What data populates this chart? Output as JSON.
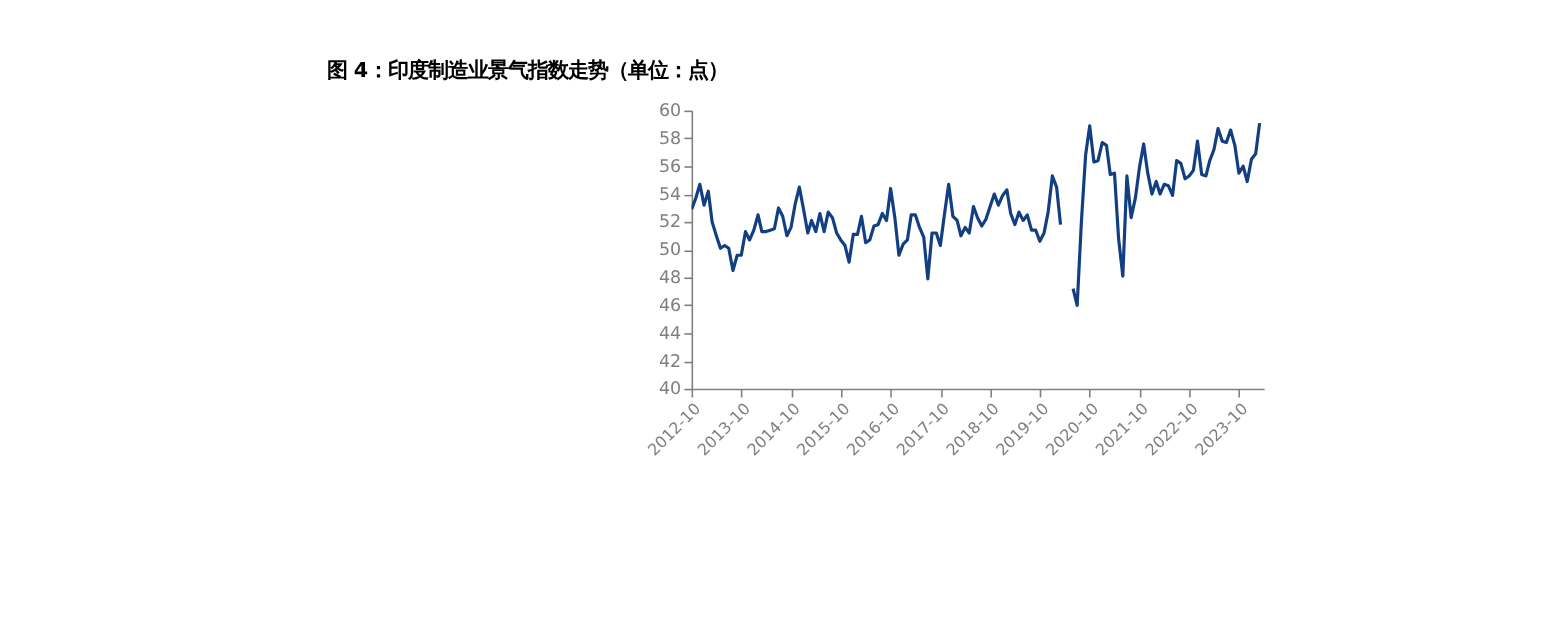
{
  "chart_data": {
    "type": "line",
    "title": "图 4：印度制造业景气指数走势（单位：点）",
    "x": [
      "2012-10",
      "2012-11",
      "2012-12",
      "2013-01",
      "2013-02",
      "2013-03",
      "2013-04",
      "2013-05",
      "2013-06",
      "2013-07",
      "2013-08",
      "2013-09",
      "2013-10",
      "2013-11",
      "2013-12",
      "2014-01",
      "2014-02",
      "2014-03",
      "2014-04",
      "2014-05",
      "2014-06",
      "2014-07",
      "2014-08",
      "2014-09",
      "2014-10",
      "2014-11",
      "2014-12",
      "2015-01",
      "2015-02",
      "2015-03",
      "2015-04",
      "2015-05",
      "2015-06",
      "2015-07",
      "2015-08",
      "2015-09",
      "2015-10",
      "2015-11",
      "2015-12",
      "2016-01",
      "2016-02",
      "2016-03",
      "2016-04",
      "2016-05",
      "2016-06",
      "2016-07",
      "2016-08",
      "2016-09",
      "2016-10",
      "2016-11",
      "2016-12",
      "2017-01",
      "2017-02",
      "2017-03",
      "2017-04",
      "2017-05",
      "2017-06",
      "2017-07",
      "2017-08",
      "2017-09",
      "2017-10",
      "2017-11",
      "2017-12",
      "2018-01",
      "2018-02",
      "2018-03",
      "2018-04",
      "2018-05",
      "2018-06",
      "2018-07",
      "2018-08",
      "2018-09",
      "2018-10",
      "2018-11",
      "2018-12",
      "2019-01",
      "2019-02",
      "2019-03",
      "2019-04",
      "2019-05",
      "2019-06",
      "2019-07",
      "2019-08",
      "2019-09",
      "2019-10",
      "2019-11",
      "2019-12",
      "2020-01",
      "2020-02",
      "2020-03",
      "2020-04",
      "2020-05",
      "2020-06",
      "2020-07",
      "2020-08",
      "2020-09",
      "2020-10",
      "2020-11",
      "2020-12",
      "2021-01",
      "2021-02",
      "2021-03",
      "2021-04",
      "2021-05",
      "2021-06",
      "2021-07",
      "2021-08",
      "2021-09",
      "2021-10",
      "2021-11",
      "2021-12",
      "2022-01",
      "2022-02",
      "2022-03",
      "2022-04",
      "2022-05",
      "2022-06",
      "2022-07",
      "2022-08",
      "2022-09",
      "2022-10",
      "2022-11",
      "2022-12",
      "2023-01",
      "2023-02",
      "2023-03",
      "2023-04",
      "2023-05",
      "2023-06",
      "2023-07",
      "2023-08",
      "2023-09",
      "2023-10",
      "2023-11",
      "2023-12",
      "2024-01",
      "2024-02",
      "2024-03"
    ],
    "series": [
      {
        "color": "#123f82",
        "values": [
          52.9,
          53.7,
          54.7,
          53.2,
          54.2,
          52.0,
          51.0,
          50.1,
          50.3,
          50.1,
          48.5,
          49.6,
          49.6,
          51.3,
          50.7,
          51.4,
          52.5,
          51.3,
          51.3,
          51.4,
          51.5,
          53.0,
          52.4,
          51.0,
          51.6,
          53.3,
          54.5,
          52.9,
          51.2,
          52.1,
          51.3,
          52.6,
          51.3,
          52.7,
          52.3,
          51.2,
          50.7,
          50.3,
          49.1,
          51.1,
          51.1,
          52.4,
          50.5,
          50.7,
          51.7,
          51.8,
          52.6,
          52.1,
          54.4,
          52.3,
          49.6,
          50.4,
          50.7,
          52.5,
          52.5,
          51.6,
          50.9,
          47.9,
          51.2,
          51.2,
          50.3,
          52.6,
          54.7,
          52.4,
          52.1,
          51.0,
          51.6,
          51.2,
          53.1,
          52.3,
          51.7,
          52.2,
          53.1,
          54.0,
          53.2,
          53.9,
          54.3,
          52.6,
          51.8,
          52.7,
          52.1,
          52.5,
          51.4,
          51.4,
          50.6,
          51.2,
          52.7,
          55.3,
          54.5,
          51.8,
          null,
          null,
          47.2,
          46.0,
          52.0,
          56.8,
          58.9,
          56.3,
          56.4,
          57.7,
          57.5,
          55.4,
          55.5,
          50.8,
          48.1,
          55.3,
          52.3,
          53.7,
          55.9,
          57.6,
          55.5,
          54.0,
          54.9,
          54.0,
          54.7,
          54.6,
          53.9,
          56.4,
          56.2,
          55.1,
          55.3,
          55.7,
          57.8,
          55.4,
          55.3,
          56.4,
          57.2,
          58.7,
          57.8,
          57.7,
          58.6,
          57.5,
          55.5,
          56.0,
          54.9,
          56.5,
          56.9,
          59.1
        ]
      }
    ],
    "xlim": [
      "2012-10",
      "2024-04"
    ],
    "xticks": [
      "2012-10",
      "2013-10",
      "2014-10",
      "2015-10",
      "2016-10",
      "2017-10",
      "2018-10",
      "2019-10",
      "2020-10",
      "2021-10",
      "2022-10",
      "2023-10"
    ],
    "ylim": [
      40,
      60
    ],
    "yticks": [
      40,
      42,
      44,
      46,
      48,
      50,
      52,
      54,
      56,
      58,
      60
    ],
    "grid": false,
    "legend": false,
    "marker": "none",
    "line_style": "solid"
  }
}
